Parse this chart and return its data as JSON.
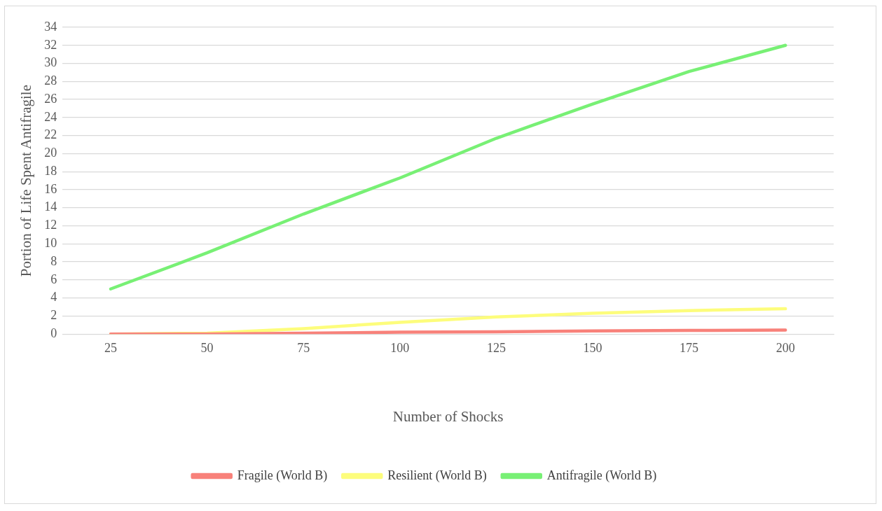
{
  "chart_data": {
    "type": "line",
    "xlabel": "Number of Shocks",
    "ylabel": "Portion of Life Spent Antifragile",
    "categories": [
      "25",
      "50",
      "75",
      "100",
      "125",
      "150",
      "175",
      "200"
    ],
    "series": [
      {
        "name": "Fragile (World B)",
        "color": "#f8817a",
        "values": [
          0,
          0,
          0.1,
          0.2,
          0.25,
          0.35,
          0.4,
          0.45
        ]
      },
      {
        "name": "Resilient (World B)",
        "color": "#fdfd7c",
        "values": [
          0,
          0.1,
          0.6,
          1.3,
          1.9,
          2.3,
          2.6,
          2.8
        ]
      },
      {
        "name": "Antifragile (World B)",
        "color": "#78f075",
        "values": [
          5,
          9,
          13.3,
          17.3,
          21.7,
          25.5,
          29.1,
          32
        ]
      }
    ],
    "ylim": [
      0,
      34
    ],
    "yticks": [
      0,
      2,
      4,
      6,
      8,
      10,
      12,
      14,
      16,
      18,
      20,
      22,
      24,
      26,
      28,
      30,
      32,
      34
    ],
    "grid": "y",
    "legend": "bottom",
    "marker": "none",
    "line_style": "solid"
  }
}
